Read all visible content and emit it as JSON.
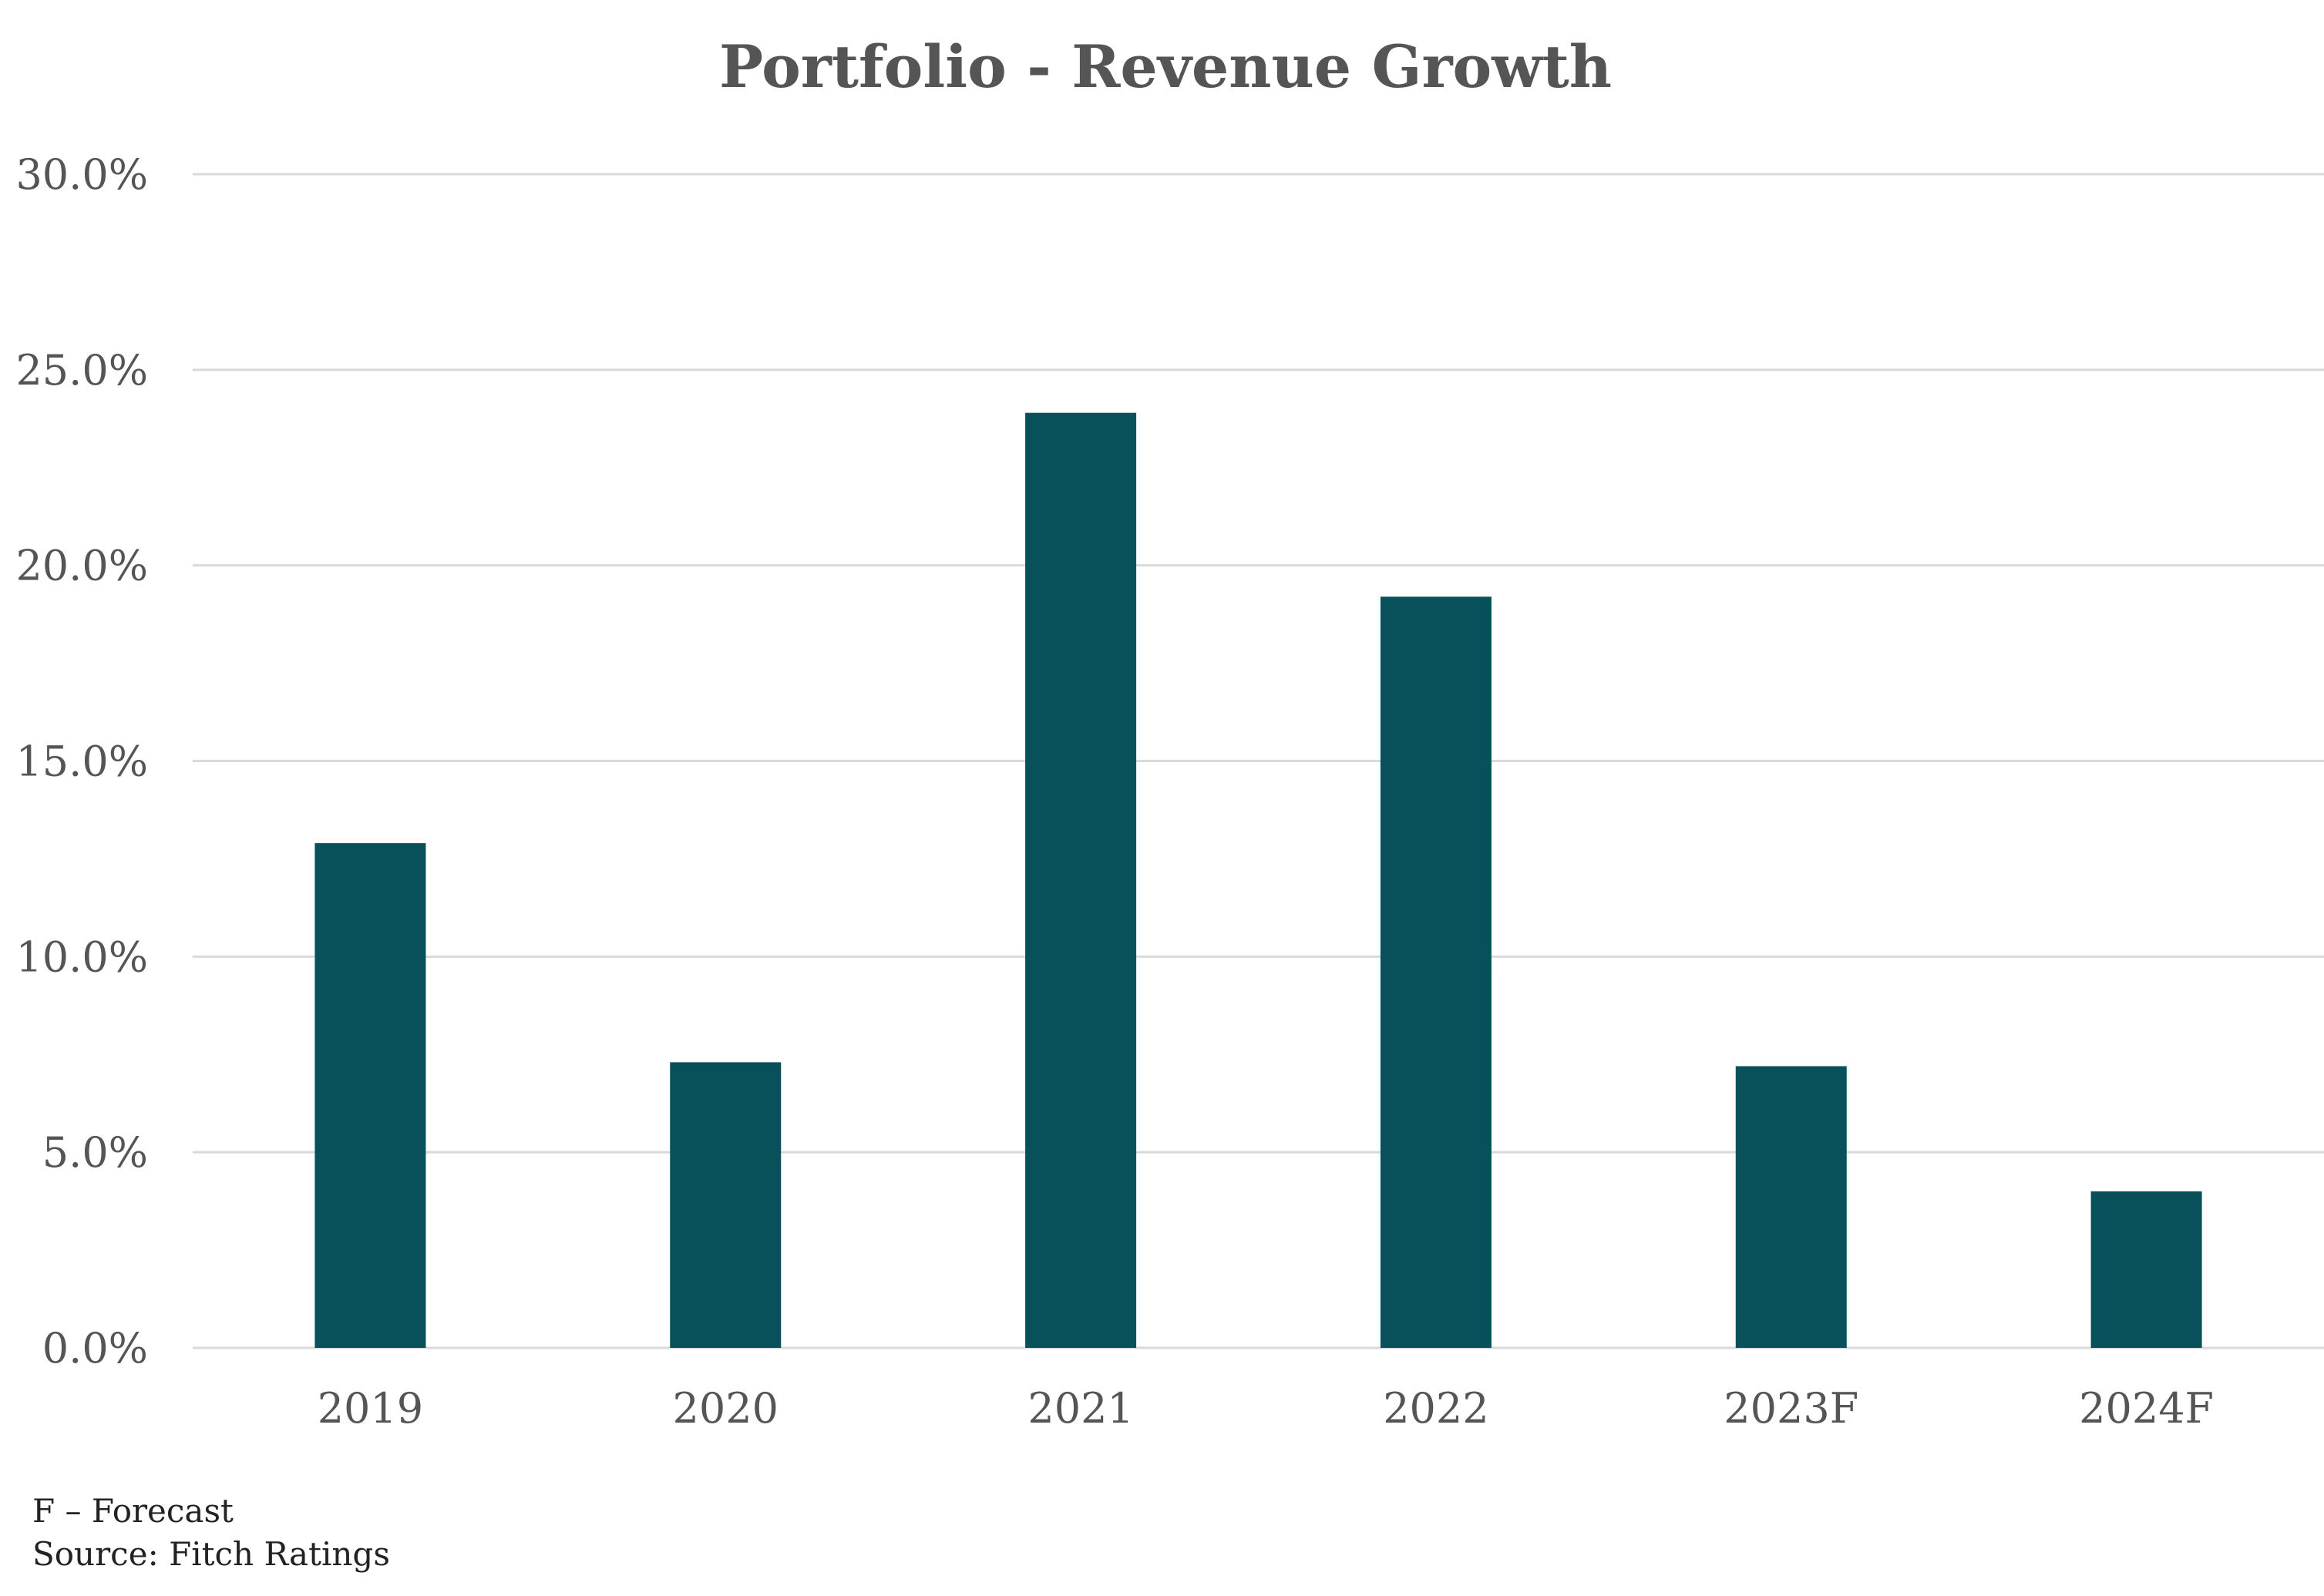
{
  "chart_data": {
    "type": "bar",
    "title": "Portfolio - Revenue Growth",
    "xlabel": "",
    "ylabel": "",
    "categories": [
      "2019",
      "2020",
      "2021",
      "2022",
      "2023F",
      "2024F"
    ],
    "values": [
      12.9,
      7.3,
      23.9,
      19.2,
      7.2,
      4.0
    ],
    "value_unit": "%",
    "ylim": [
      0,
      30
    ],
    "ytick_values": [
      0,
      5,
      10,
      15,
      20,
      25,
      30
    ],
    "ytick_labels": [
      "0.0%",
      "5.0%",
      "10.0%",
      "15.0%",
      "20.0%",
      "25.0%",
      "30.0%"
    ],
    "grid": true,
    "legend": "none",
    "bar_color": "#08505A",
    "grid_color": "#D9D9D9"
  },
  "notes": {
    "forecast_note": "F – Forecast",
    "source": "Source: Fitch Ratings"
  }
}
